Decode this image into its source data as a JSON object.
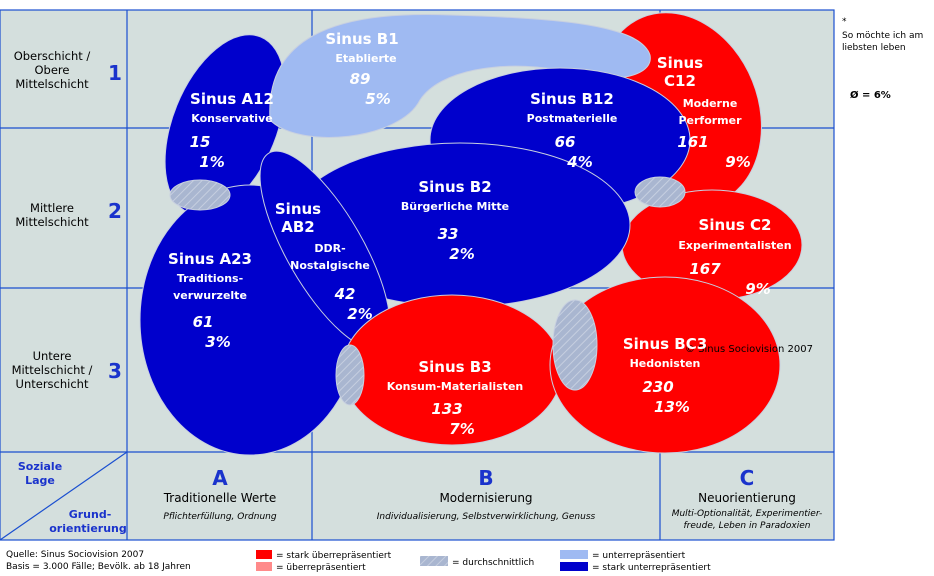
{
  "note": {
    "star": "*",
    "lines": [
      "So möchte ich am",
      "liebsten leben"
    ],
    "average": "Ø = 6%"
  },
  "rows": [
    {
      "label": [
        "Oberschicht /",
        "Obere",
        "Mittelschicht"
      ],
      "number": "1"
    },
    {
      "label": [
        "Mittlere",
        "Mittelschicht"
      ],
      "number": "2"
    },
    {
      "label": [
        "Untere",
        "Mittelschicht /",
        "Unterschicht"
      ],
      "number": "3"
    }
  ],
  "corner": {
    "top": [
      "Soziale",
      "Lage"
    ],
    "bottom": [
      "Grund-",
      "orientierung"
    ]
  },
  "columns": [
    {
      "letter": "A",
      "title": "Traditionelle Werte",
      "subtitle": [
        "Pflichterfüllung, Ordnung"
      ]
    },
    {
      "letter": "B",
      "title": "Modernisierung",
      "subtitle": [
        "Individualisierung, Selbstverwirklichung, Genuss"
      ]
    },
    {
      "letter": "C",
      "title": "Neuorientierung",
      "subtitle": [
        "Multi-Optionalität, Experimentier-",
        "freude, Leben in Paradoxien"
      ]
    }
  ],
  "milieus": [
    {
      "name": [
        "Sinus B1"
      ],
      "subtitle": [
        "Etablierte"
      ],
      "index": "89",
      "share": "5%"
    },
    {
      "name": [
        "Sinus A12"
      ],
      "subtitle": [
        "Konservative"
      ],
      "index": "15",
      "share": "1%"
    },
    {
      "name": [
        "Sinus B12"
      ],
      "subtitle": [
        "Postmaterielle"
      ],
      "index": "66",
      "share": "4%"
    },
    {
      "name": [
        "Sinus",
        "C12"
      ],
      "subtitle": [
        "Moderne",
        "Performer"
      ],
      "index": "161",
      "share": "9%"
    },
    {
      "name": [
        "Sinus B2"
      ],
      "subtitle": [
        "Bürgerliche Mitte"
      ],
      "index": "33",
      "share": "2%"
    },
    {
      "name": [
        "Sinus",
        "AB2"
      ],
      "subtitle": [
        "DDR-",
        "Nostalgische"
      ],
      "index": "42",
      "share": "2%"
    },
    {
      "name": [
        "Sinus C2"
      ],
      "subtitle": [
        "Experimentalisten"
      ],
      "index": "167",
      "share": "9%"
    },
    {
      "name": [
        "Sinus A23"
      ],
      "subtitle": [
        "Traditions-",
        "verwurzelte"
      ],
      "index": "61",
      "share": "3%"
    },
    {
      "name": [
        "Sinus B3"
      ],
      "subtitle": [
        "Konsum-Materialisten"
      ],
      "index": "133",
      "share": "7%"
    },
    {
      "name": [
        "Sinus BC3"
      ],
      "subtitle": [
        "Hedonisten"
      ],
      "index": "230",
      "share": "13%"
    }
  ],
  "copyright": "© Sinus Sociovision 2007",
  "source": [
    "Quelle: Sinus Sociovision 2007",
    "Basis = 3.000 Fälle; Bevölk. ab 18 Jahren"
  ],
  "legend": [
    "= stark überrepräsentiert",
    "= überrepräsentiert",
    "= durchschnittlich",
    "= unterrepräsentiert",
    "= stark unterrepräsentiert"
  ]
}
